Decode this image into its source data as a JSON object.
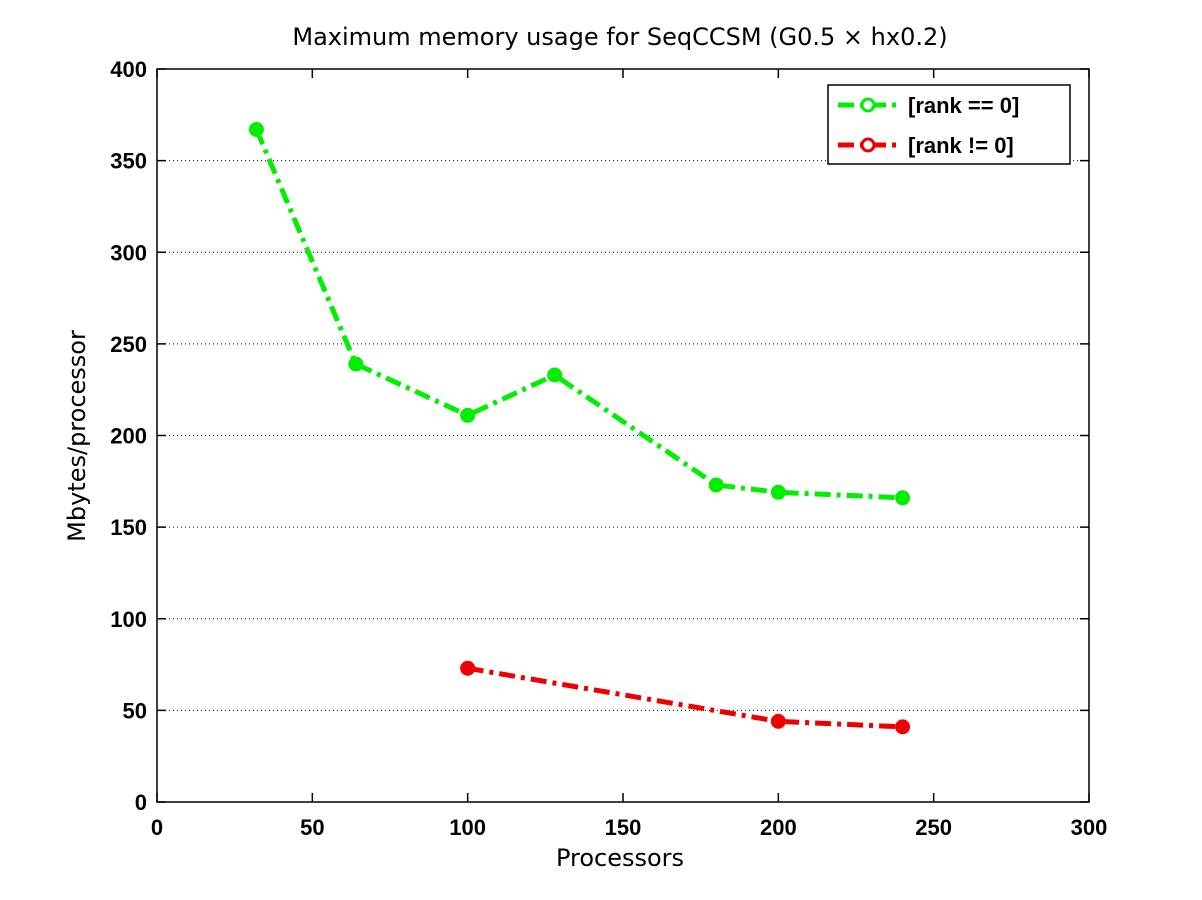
{
  "chart_data": {
    "type": "line",
    "title": "Maximum memory usage for SeqCCSM (G0.5 × hx0.2)",
    "xlabel": "Processors",
    "ylabel": "Mbytes/processor",
    "xlim": [
      0,
      300
    ],
    "ylim": [
      0,
      400
    ],
    "xticks": [
      0,
      50,
      100,
      150,
      200,
      250,
      300
    ],
    "yticks": [
      0,
      50,
      100,
      150,
      200,
      250,
      300,
      350,
      400
    ],
    "grid": "horizontal dotted",
    "legend_position": "top-right",
    "series": [
      {
        "name": "[rank == 0]",
        "color": "#00ee00",
        "x": [
          32,
          64,
          100,
          128,
          180,
          200,
          240
        ],
        "y": [
          367,
          239,
          211,
          233,
          173,
          169,
          166
        ]
      },
      {
        "name": "[rank != 0]",
        "color": "#ee0000",
        "x": [
          100,
          200,
          240
        ],
        "y": [
          73,
          44,
          41
        ]
      }
    ]
  }
}
